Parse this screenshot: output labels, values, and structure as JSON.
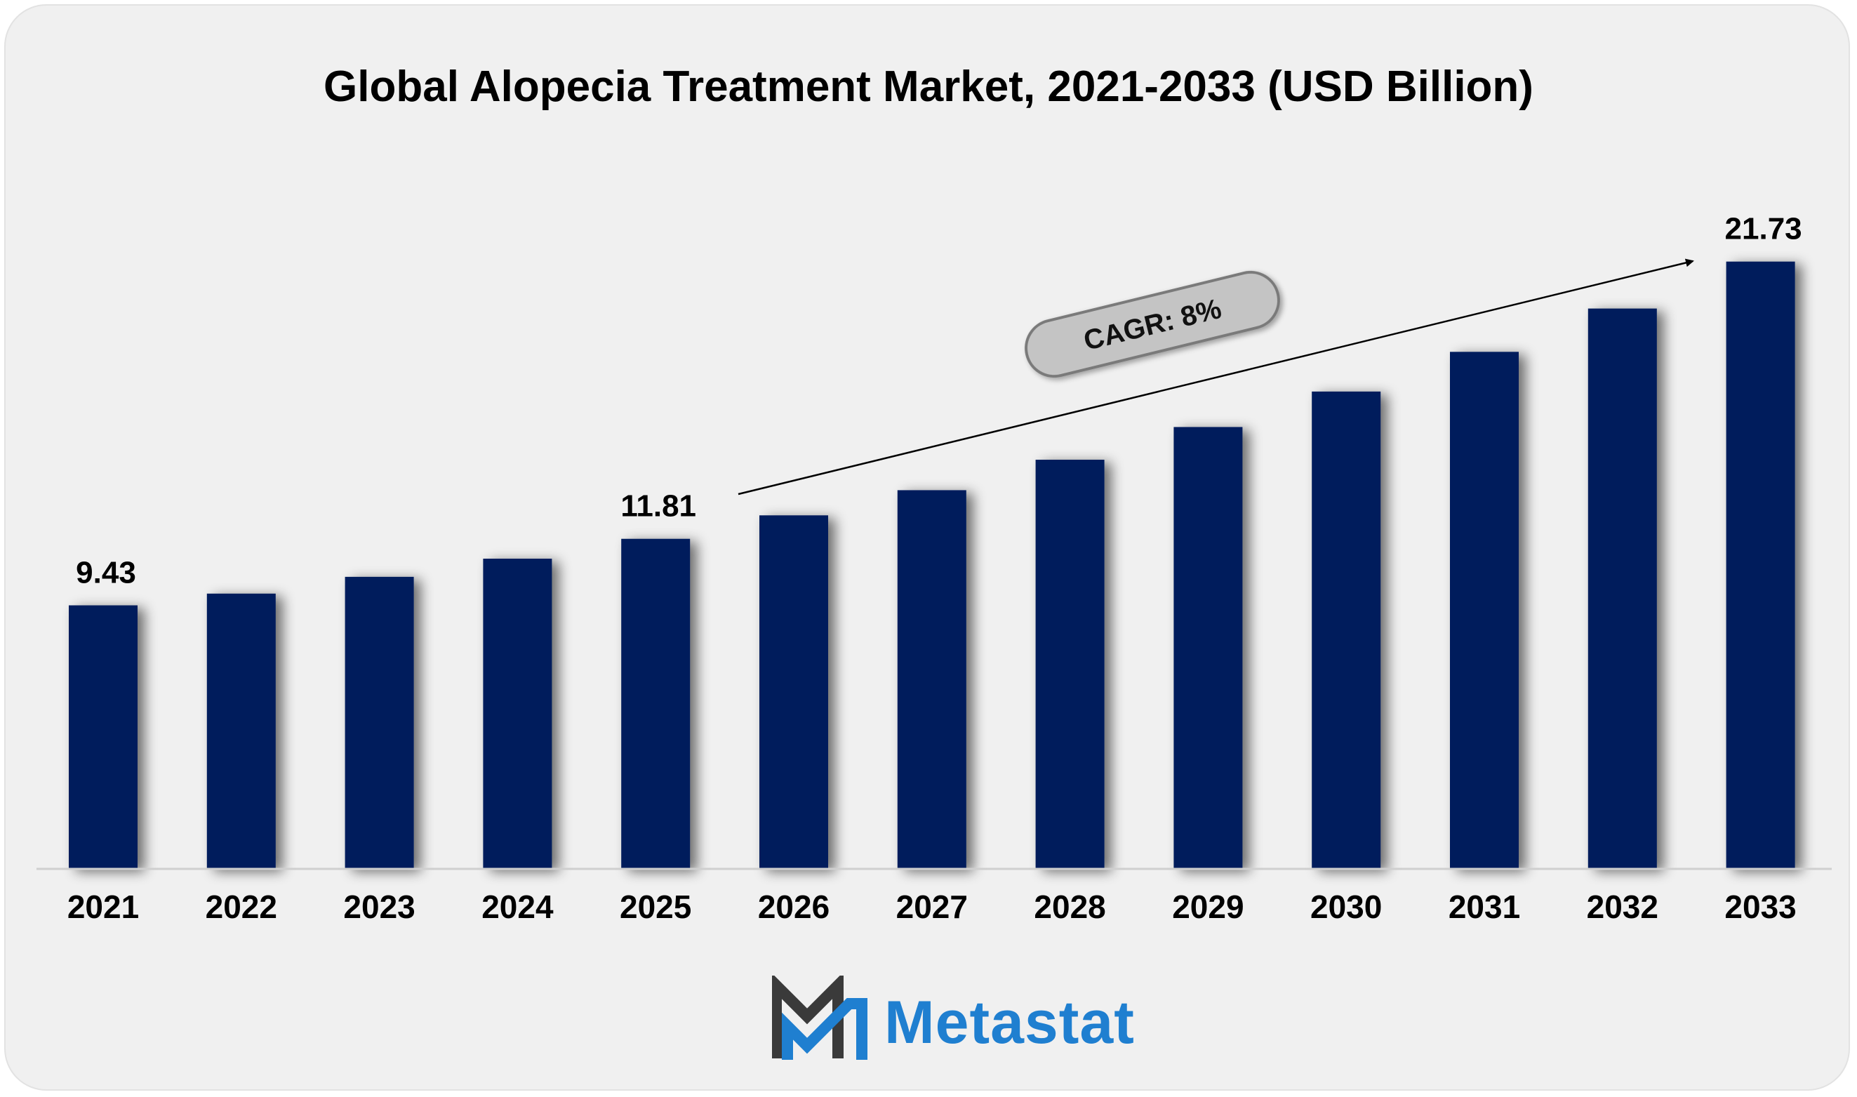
{
  "chart_data": {
    "type": "bar",
    "title": "Global Alopecia Treatment Market, 2021-2033 (USD Billion)",
    "categories": [
      "2021",
      "2022",
      "2023",
      "2024",
      "2025",
      "2026",
      "2027",
      "2028",
      "2029",
      "2030",
      "2031",
      "2032",
      "2033"
    ],
    "values": [
      9.43,
      9.85,
      10.45,
      11.1,
      11.81,
      12.65,
      13.55,
      14.64,
      15.81,
      17.08,
      18.5,
      20.05,
      21.73
    ],
    "data_labels": {
      "0": "9.43",
      "4": "11.81",
      "12": "21.73"
    },
    "annotation": "CAGR: 8%",
    "ylim": [
      0,
      22.3
    ],
    "xlabel": "",
    "ylabel": "",
    "bar_color": "#041e5c",
    "grid": false,
    "legend": "none"
  },
  "branding": {
    "logo_text": "Metastat",
    "logo_color": "#1f7fd0",
    "logo_dark": "#3a3a3a"
  }
}
